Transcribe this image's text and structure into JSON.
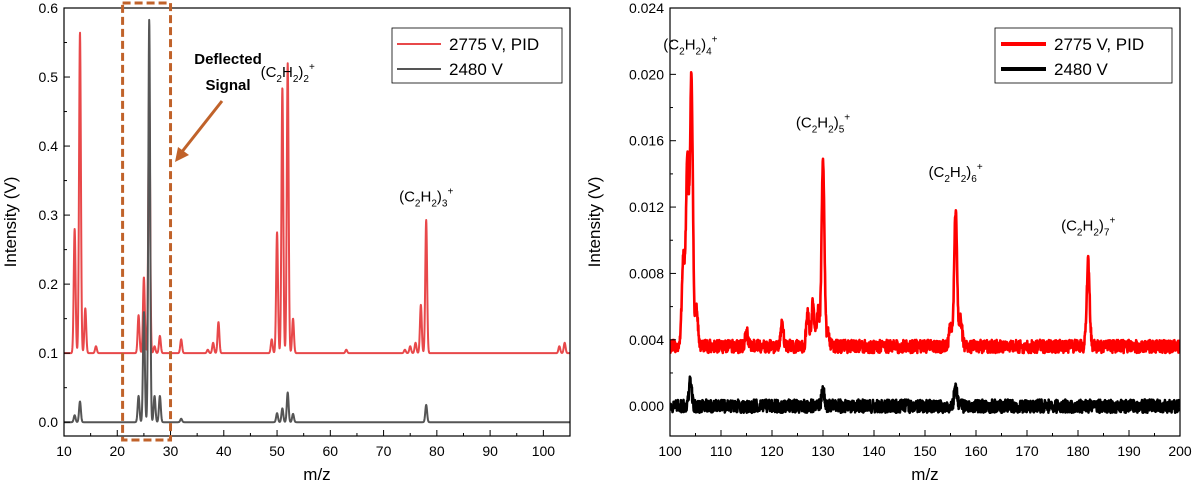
{
  "chart_data": [
    {
      "type": "line",
      "panel": "left",
      "xlabel": "m/z",
      "ylabel": "Intensity (V)",
      "xlim": [
        10,
        105
      ],
      "ylim": [
        -0.02,
        0.6
      ],
      "xticks": [
        10,
        20,
        30,
        40,
        50,
        60,
        70,
        80,
        90,
        100
      ],
      "yticks": [
        0.0,
        0.1,
        0.2,
        0.3,
        0.4,
        0.5,
        0.6
      ],
      "ytick_labels": [
        "0.0",
        "0.1",
        "0.2",
        "0.3",
        "0.4",
        "0.5",
        "0.6"
      ],
      "legend_position": "top-right",
      "series": [
        {
          "name": "2775 V, PID",
          "color": "#e8484a",
          "baseline": 0.1,
          "peaks": [
            [
              12,
              0.28
            ],
            [
              13,
              0.565
            ],
            [
              14,
              0.165
            ],
            [
              16,
              0.11
            ],
            [
              24,
              0.155
            ],
            [
              25,
              0.21
            ],
            [
              26,
              0.48
            ],
            [
              27,
              0.11
            ],
            [
              28,
              0.125
            ],
            [
              32,
              0.12
            ],
            [
              37,
              0.105
            ],
            [
              38,
              0.115
            ],
            [
              39,
              0.145
            ],
            [
              49,
              0.12
            ],
            [
              50,
              0.275
            ],
            [
              51,
              0.485
            ],
            [
              52,
              0.52
            ],
            [
              53,
              0.15
            ],
            [
              63,
              0.105
            ],
            [
              74,
              0.105
            ],
            [
              75,
              0.11
            ],
            [
              76,
              0.115
            ],
            [
              77,
              0.17
            ],
            [
              78,
              0.293
            ],
            [
              103,
              0.11
            ],
            [
              104,
              0.115
            ]
          ]
        },
        {
          "name": "2480 V",
          "color": "#555555",
          "baseline": 0.0,
          "peaks": [
            [
              12,
              0.01
            ],
            [
              13,
              0.03
            ],
            [
              24,
              0.038
            ],
            [
              25,
              0.16
            ],
            [
              26,
              0.583
            ],
            [
              27,
              0.038
            ],
            [
              28,
              0.038
            ],
            [
              32,
              0.005
            ],
            [
              50,
              0.013
            ],
            [
              51,
              0.02
            ],
            [
              52,
              0.043
            ],
            [
              53,
              0.012
            ],
            [
              78,
              0.025
            ]
          ]
        }
      ],
      "annotations": {
        "deflected": {
          "line1": "Deflected",
          "line2": "Signal",
          "box_range": [
            21,
            30
          ]
        },
        "labels": [
          {
            "base": "(C",
            "s1": "2",
            "mid": "H",
            "s2": "2",
            "close": ")",
            "n": "2",
            "sup": "+",
            "x": 52,
            "y": 0.5
          },
          {
            "base": "(C",
            "s1": "2",
            "mid": "H",
            "s2": "2",
            "close": ")",
            "n": "3",
            "sup": "+",
            "x": 78,
            "y": 0.32
          }
        ]
      }
    },
    {
      "type": "line",
      "panel": "right",
      "xlabel": "m/z",
      "ylabel": "Intensity (V)",
      "xlim": [
        100,
        200
      ],
      "ylim": [
        -0.0018,
        0.024
      ],
      "xticks": [
        100,
        110,
        120,
        130,
        140,
        150,
        160,
        170,
        180,
        190,
        200
      ],
      "yticks": [
        0.0,
        0.004,
        0.008,
        0.012,
        0.016,
        0.02,
        0.024
      ],
      "ytick_labels": [
        "0.000",
        "0.004",
        "0.008",
        "0.012",
        "0.016",
        "0.020",
        "0.024"
      ],
      "legend_position": "top-right",
      "series": [
        {
          "name": "2775 V, PID",
          "color": "#ff0000",
          "baseline": 0.0036,
          "noise": 0.0004,
          "peaks": [
            [
              102.6,
              0.009
            ],
            [
              103.4,
              0.0147
            ],
            [
              104.2,
              0.0198
            ],
            [
              105.2,
              0.0058
            ],
            [
              115,
              0.0045
            ],
            [
              122,
              0.0049
            ],
            [
              127,
              0.0055
            ],
            [
              128,
              0.0062
            ],
            [
              129,
              0.0058
            ],
            [
              130,
              0.0147
            ],
            [
              131,
              0.0045
            ],
            [
              155,
              0.0047
            ],
            [
              156,
              0.0118
            ],
            [
              157,
              0.0052
            ],
            [
              182,
              0.0087
            ]
          ]
        },
        {
          "name": "2480 V",
          "color": "#000000",
          "baseline": 0.0,
          "noise": 0.0004,
          "peaks": [
            [
              104,
              0.0015
            ],
            [
              130,
              0.0009
            ],
            [
              156,
              0.0011
            ]
          ]
        }
      ],
      "annotations": {
        "labels": [
          {
            "base": "(C",
            "s1": "2",
            "mid": "H",
            "s2": "2",
            "close": ")",
            "n": "4",
            "sup": "+",
            "x": 104,
            "y": 0.0215
          },
          {
            "base": "(C",
            "s1": "2",
            "mid": "H",
            "s2": "2",
            "close": ")",
            "n": "5",
            "sup": "+",
            "x": 130,
            "y": 0.0168
          },
          {
            "base": "(C",
            "s1": "2",
            "mid": "H",
            "s2": "2",
            "close": ")",
            "n": "6",
            "sup": "+",
            "x": 156,
            "y": 0.0138
          },
          {
            "base": "(C",
            "s1": "2",
            "mid": "H",
            "s2": "2",
            "close": ")",
            "n": "7",
            "sup": "+",
            "x": 182,
            "y": 0.0106
          }
        ]
      }
    }
  ]
}
